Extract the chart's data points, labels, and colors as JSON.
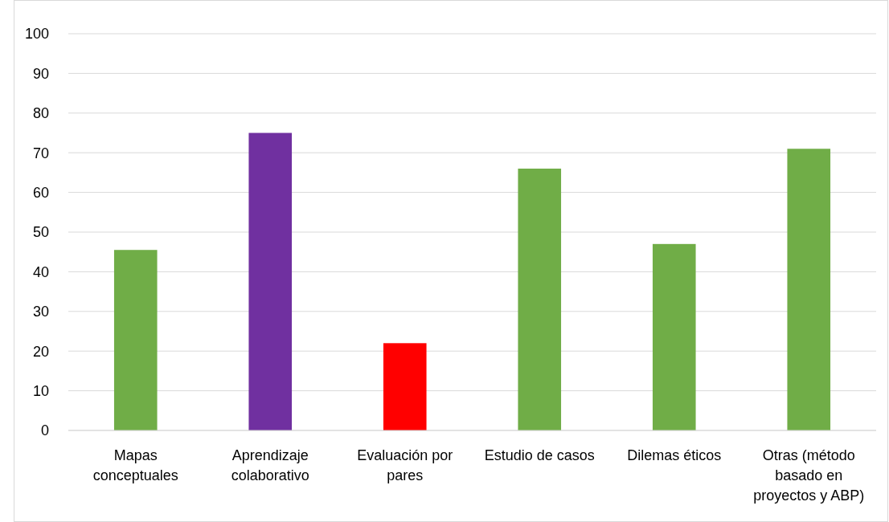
{
  "chart_data": {
    "type": "bar",
    "categories": [
      "Mapas conceptuales",
      "Aprendizaje colaborativo",
      "Evaluación por pares",
      "Estudio de casos",
      "Dilemas éticos",
      "Otras (método basado en proyectos y ABP)"
    ],
    "values": [
      45.5,
      75,
      22,
      66,
      47,
      71
    ],
    "colors": [
      "#70ad47",
      "#7030a0",
      "#ff0000",
      "#70ad47",
      "#70ad47",
      "#70ad47"
    ],
    "ylim": [
      0,
      100
    ],
    "yticks": [
      0,
      10,
      20,
      30,
      40,
      50,
      60,
      70,
      80,
      90,
      100
    ],
    "grid": "y"
  }
}
